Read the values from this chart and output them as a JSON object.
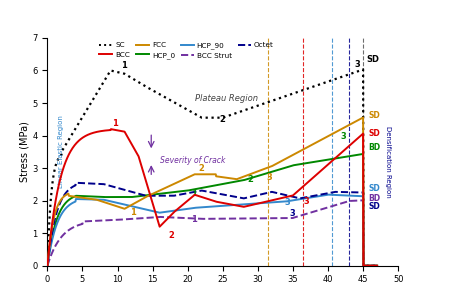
{
  "ylabel": "Stress (MPa)",
  "xlim": [
    0,
    50
  ],
  "ylim": [
    0,
    7
  ],
  "xticks": [
    0,
    5,
    10,
    15,
    20,
    25,
    30,
    35,
    40,
    45,
    50
  ],
  "yticks": [
    0,
    1,
    2,
    3,
    4,
    5,
    6,
    7
  ],
  "bg_color": "#ffffff",
  "curves": {
    "SC": {
      "color": "#000000",
      "linestyle": "dotted",
      "linewidth": 1.6
    },
    "BCC": {
      "color": "#dd0000",
      "linestyle": "solid",
      "linewidth": 1.4
    },
    "FCC": {
      "color": "#cc8800",
      "linestyle": "solid",
      "linewidth": 1.4
    },
    "HCP_0": {
      "color": "#008800",
      "linestyle": "solid",
      "linewidth": 1.4
    },
    "HCP_90": {
      "color": "#3388cc",
      "linestyle": "solid",
      "linewidth": 1.4
    },
    "BCC_Strut": {
      "color": "#7030a0",
      "linestyle": "dashed",
      "linewidth": 1.4
    },
    "Octet": {
      "color": "#00008b",
      "linestyle": "dashed",
      "linewidth": 1.4
    }
  },
  "vlines": [
    {
      "x": 31.5,
      "color": "#cc8800"
    },
    {
      "x": 36.5,
      "color": "#dd0000"
    },
    {
      "x": 40.5,
      "color": "#3388cc"
    },
    {
      "x": 43.0,
      "color": "#00008b"
    },
    {
      "x": 45.0,
      "color": "#555555"
    }
  ],
  "right_labels": [
    {
      "text": "SD",
      "color": "#cc8800",
      "y": 4.62
    },
    {
      "text": "SD",
      "color": "#dd0000",
      "y": 4.05
    },
    {
      "text": "BD",
      "color": "#008800",
      "y": 3.62
    },
    {
      "text": "BD",
      "color": "#7030a0",
      "y": 2.08
    },
    {
      "text": "SD",
      "color": "#3388cc",
      "y": 2.38
    },
    {
      "text": "SD",
      "color": "#00008b",
      "y": 1.82
    }
  ],
  "legend": [
    {
      "label": "SC",
      "color": "#000000",
      "ls": "dotted"
    },
    {
      "label": "BCC",
      "color": "#dd0000",
      "ls": "solid"
    },
    {
      "label": "FCC",
      "color": "#cc8800",
      "ls": "solid"
    },
    {
      "label": "HCP_0",
      "color": "#008800",
      "ls": "solid"
    },
    {
      "label": "HCP_90",
      "color": "#3388cc",
      "ls": "solid"
    },
    {
      "label": "BCC Strut",
      "color": "#7030a0",
      "ls": "dashed"
    },
    {
      "label": "Octet",
      "color": "#00008b",
      "ls": "dashed"
    }
  ]
}
